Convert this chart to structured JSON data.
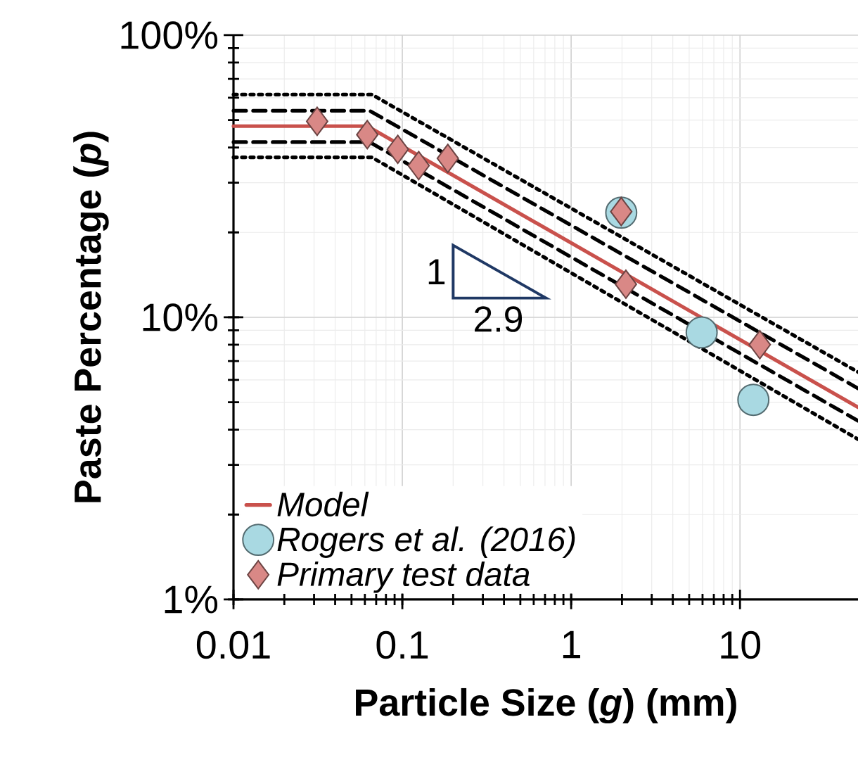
{
  "chart_data": {
    "type": "line",
    "xlabel": "Particle Size (*g*) (mm)",
    "ylabel": "Paste Percentage (*p*)",
    "log": "xy",
    "xlim": [
      0.01,
      50
    ],
    "ylim": [
      1,
      100
    ],
    "xticks": [
      0.01,
      0.1,
      1,
      10
    ],
    "yticks": [
      {
        "value": 1,
        "label": "1%"
      },
      {
        "value": 10,
        "label": "10%"
      },
      {
        "value": 100,
        "label": "100%"
      }
    ],
    "grid": true,
    "legend": "bottom left",
    "annotations": [
      "1",
      "2.9"
    ],
    "series": [
      {
        "name": "Model",
        "type": "line",
        "color": "#c9514c",
        "line_style": "solid",
        "marker": "none",
        "x": [
          0.01,
          0.062,
          50
        ],
        "values": [
          47.6,
          47.6,
          4.8
        ]
      },
      {
        "type": "line",
        "color": "#000000",
        "line_style": "dashed",
        "marker": "none",
        "x": [
          0.01,
          0.064,
          50
        ],
        "values": [
          54,
          54,
          5.6
        ]
      },
      {
        "type": "line",
        "color": "#000000",
        "line_style": "dashed",
        "marker": "none",
        "x": [
          0.01,
          0.064,
          50
        ],
        "values": [
          41.8,
          41.8,
          4.3
        ]
      },
      {
        "type": "line",
        "color": "#000000",
        "line_style": "dotted",
        "marker": "none",
        "x": [
          0.01,
          0.066,
          50
        ],
        "values": [
          61.6,
          61.6,
          6.4
        ]
      },
      {
        "type": "line",
        "color": "#000000",
        "line_style": "dotted",
        "marker": "none",
        "x": [
          0.01,
          0.066,
          50
        ],
        "values": [
          36.9,
          36.9,
          3.7
        ]
      },
      {
        "name": "Rogers et al. (2016)",
        "type": "scatter",
        "color": "#a9d9e2",
        "marker": "circle",
        "x": [
          1.98,
          5.93,
          12.0
        ],
        "values": [
          23.5,
          8.84,
          5.1
        ]
      },
      {
        "name": "Primary test data",
        "type": "scatter",
        "color": "#d98886",
        "marker": "diamond",
        "x": [
          0.0313,
          0.062,
          0.094,
          0.125,
          0.186,
          1.98,
          2.11,
          13.1
        ],
        "values": [
          49.5,
          44.4,
          39.4,
          34.5,
          36.6,
          23.7,
          13.1,
          8.0
        ]
      }
    ]
  }
}
